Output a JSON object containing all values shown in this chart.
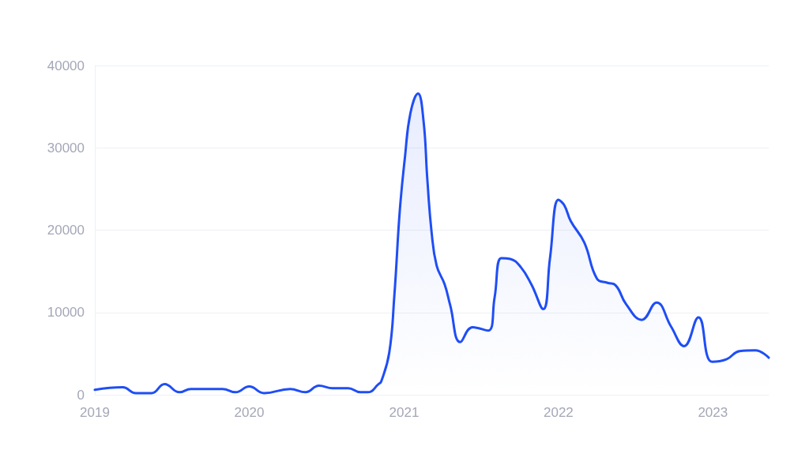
{
  "chart_data": {
    "type": "area",
    "x": [
      "2019-01-01",
      "2019-03-08",
      "2019-04-08",
      "2019-05-15",
      "2019-06-15",
      "2019-07-20",
      "2019-08-16",
      "2019-10-30",
      "2019-11-30",
      "2020-01-01",
      "2020-02-05",
      "2020-04-07",
      "2020-05-13",
      "2020-06-14",
      "2020-07-16",
      "2020-08-22",
      "2020-09-20",
      "2020-10-08",
      "2020-11-02",
      "2020-11-08",
      "2020-11-27",
      "2020-12-09",
      "2020-12-22",
      "2021-01-03",
      "2021-01-16",
      "2021-02-03",
      "2021-02-16",
      "2021-02-25",
      "2021-03-07",
      "2021-03-19",
      "2021-04-07",
      "2021-04-20",
      "2021-05-14",
      "2021-06-12",
      "2021-07-19",
      "2021-08-03",
      "2021-08-19",
      "2021-09-09",
      "2021-10-04",
      "2021-10-29",
      "2021-11-26",
      "2021-12-12",
      "2022-01-01",
      "2022-01-15",
      "2022-01-30",
      "2022-03-03",
      "2022-04-02",
      "2022-04-27",
      "2022-05-16",
      "2022-06-10",
      "2022-07-17",
      "2022-08-21",
      "2022-09-24",
      "2022-10-25",
      "2022-11-28",
      "2022-12-30",
      "2023-02-02",
      "2023-03-05",
      "2023-04-11",
      "2023-05-13"
    ],
    "values": [
      600,
      900,
      200,
      200,
      1300,
      300,
      700,
      700,
      300,
      1000,
      200,
      700,
      300,
      1100,
      800,
      800,
      300,
      300,
      1300,
      1600,
      5100,
      12000,
      22400,
      28800,
      34200,
      36600,
      33300,
      26200,
      19800,
      15700,
      13400,
      10900,
      6400,
      8200,
      7800,
      11800,
      16600,
      16500,
      15500,
      13400,
      10400,
      16600,
      23700,
      23000,
      21100,
      18500,
      14100,
      13600,
      13300,
      11000,
      9100,
      11200,
      8300,
      5900,
      9400,
      4000,
      4300,
      5300,
      5400,
      4500
    ],
    "color": "#1f4ef5",
    "xlim": [
      "2019-01-01",
      "2023-05-13"
    ],
    "xticks": [
      "2019",
      "2020",
      "2021",
      "2022",
      "2023"
    ],
    "ylim": [
      0,
      40000
    ],
    "yticks": [
      0,
      10000,
      20000,
      30000,
      40000
    ],
    "grid": "y"
  }
}
